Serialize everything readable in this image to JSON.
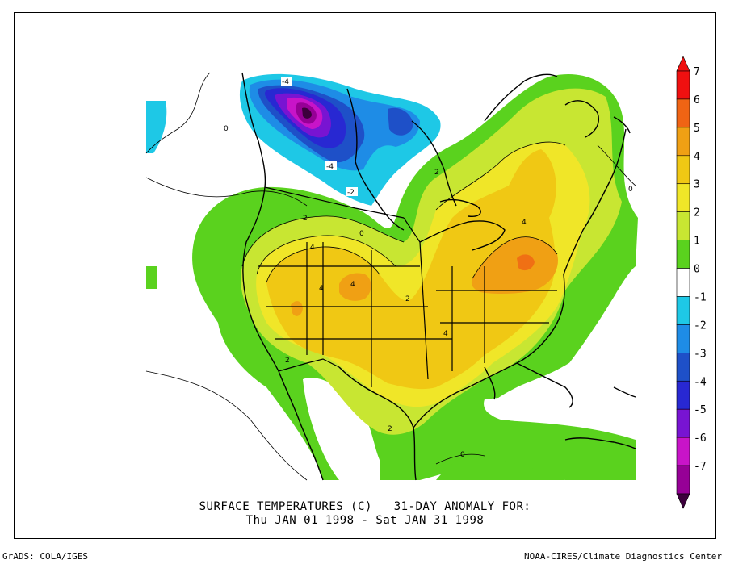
{
  "title": {
    "line1": "SURFACE TEMPERATURES (C)   31-DAY ANOMALY FOR:",
    "line2": "Thu JAN 01 1998 - Sat JAN 31 1998"
  },
  "footer": {
    "left": "GrADS: COLA/IGES",
    "right": "NOAA-CIRES/Climate Diagnostics Center"
  },
  "colorbar": {
    "levels": [
      {
        "label": "7",
        "color": "#f01010"
      },
      {
        "label": "6",
        "color": "#f06414"
      },
      {
        "label": "5",
        "color": "#f0a014"
      },
      {
        "label": "4",
        "color": "#f0c814"
      },
      {
        "label": "3",
        "color": "#f0e628"
      },
      {
        "label": "2",
        "color": "#c8e632"
      },
      {
        "label": "1",
        "color": "#5ad21e"
      },
      {
        "label": "0",
        "color": "#ffffff"
      },
      {
        "label": "-1",
        "color": "#1ec8e6"
      },
      {
        "label": "-2",
        "color": "#1e8ce6"
      },
      {
        "label": "-3",
        "color": "#1e50c8"
      },
      {
        "label": "-4",
        "color": "#2828d2"
      },
      {
        "label": "-5",
        "color": "#7814d2"
      },
      {
        "label": "-6",
        "color": "#c814c8"
      },
      {
        "label": "-7",
        "color": "#960096"
      }
    ],
    "top_arrow_color": "#f01010",
    "bottom_arrow_color": "#3c003c"
  },
  "contour_labels": [
    "-4",
    "0",
    "-4",
    "-2",
    "2",
    "0",
    "2",
    "4",
    "4",
    "4",
    "2",
    "4",
    "2",
    "2",
    "0",
    "0",
    "4"
  ]
}
